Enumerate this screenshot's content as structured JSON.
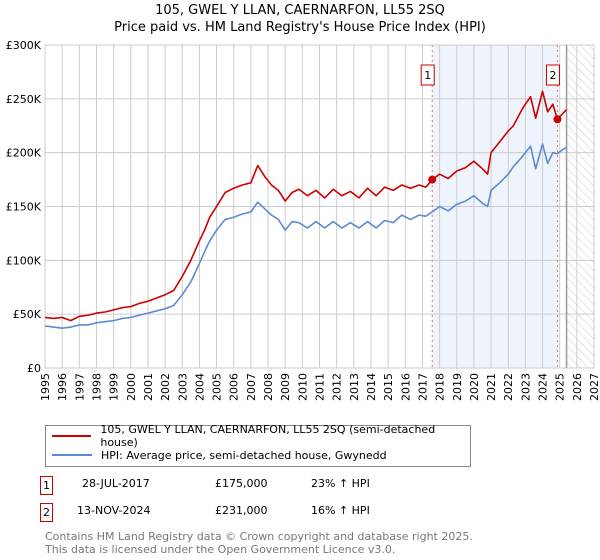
{
  "chart_data": {
    "type": "line",
    "title": "105, GWEL Y LLAN, CAERNARFON, LL55 2SQ",
    "subtitle": "Price paid vs. HM Land Registry's House Price Index (HPI)",
    "xlim": [
      1995,
      2027
    ],
    "ylim": [
      0,
      300000
    ],
    "x_ticks": [
      "1995",
      "1996",
      "1997",
      "1998",
      "1999",
      "2000",
      "2001",
      "2002",
      "2003",
      "2004",
      "2005",
      "2006",
      "2007",
      "2008",
      "2009",
      "2010",
      "2011",
      "2012",
      "2013",
      "2014",
      "2015",
      "2016",
      "2017",
      "2018",
      "2019",
      "2020",
      "2021",
      "2022",
      "2023",
      "2024",
      "2025",
      "2026",
      "2027"
    ],
    "y_ticks": [
      {
        "v": 0,
        "label": "£0"
      },
      {
        "v": 50000,
        "label": "£50K"
      },
      {
        "v": 100000,
        "label": "£100K"
      },
      {
        "v": 150000,
        "label": "£150K"
      },
      {
        "v": 200000,
        "label": "£200K"
      },
      {
        "v": 250000,
        "label": "£250K"
      },
      {
        "v": 300000,
        "label": "£300K"
      }
    ],
    "grid": true,
    "series": [
      {
        "name": "105, GWEL Y LLAN, CAERNARFON, LL55 2SQ (semi-detached house)",
        "color": "#cc0000",
        "x": [
          1995,
          1995.5,
          1996,
          1996.5,
          1997,
          1997.5,
          1998,
          1998.5,
          1999,
          1999.5,
          2000,
          2000.5,
          2001,
          2001.5,
          2002,
          2002.5,
          2003,
          2003.5,
          2004,
          2004.3,
          2004.6,
          2005,
          2005.5,
          2006,
          2006.5,
          2007,
          2007.4,
          2007.8,
          2008.2,
          2008.6,
          2009,
          2009.4,
          2009.8,
          2010.3,
          2010.8,
          2011.3,
          2011.8,
          2012.3,
          2012.8,
          2013.3,
          2013.8,
          2014.3,
          2014.8,
          2015.3,
          2015.8,
          2016.3,
          2016.8,
          2017.2,
          2017.57,
          2018,
          2018.5,
          2019,
          2019.5,
          2020,
          2020.5,
          2020.8,
          2021,
          2021.5,
          2022,
          2022.3,
          2022.8,
          2023,
          2023.3,
          2023.6,
          2024,
          2024.3,
          2024.6,
          2024.87,
          2025.1,
          2025.4
        ],
        "y": [
          47000,
          46000,
          47000,
          44000,
          48000,
          49000,
          51000,
          52000,
          54000,
          56000,
          57000,
          60000,
          62000,
          65000,
          68000,
          72000,
          85000,
          100000,
          118000,
          128000,
          140000,
          150000,
          163000,
          167000,
          170000,
          172000,
          188000,
          178000,
          170000,
          165000,
          155000,
          163000,
          166000,
          160000,
          165000,
          158000,
          166000,
          160000,
          164000,
          158000,
          167000,
          160000,
          168000,
          165000,
          170000,
          167000,
          170000,
          168000,
          175000,
          180000,
          176000,
          183000,
          186000,
          192000,
          185000,
          180000,
          200000,
          210000,
          220000,
          225000,
          240000,
          245000,
          252000,
          232000,
          257000,
          238000,
          245000,
          231000,
          235000,
          240000
        ]
      },
      {
        "name": "HPI: Average price, semi-detached house, Gwynedd",
        "color": "#5b8bd0",
        "x": [
          1995,
          1995.5,
          1996,
          1996.5,
          1997,
          1997.5,
          1998,
          1998.5,
          1999,
          1999.5,
          2000,
          2000.5,
          2001,
          2001.5,
          2002,
          2002.5,
          2003,
          2003.5,
          2004,
          2004.3,
          2004.6,
          2005,
          2005.5,
          2006,
          2006.5,
          2007,
          2007.4,
          2007.8,
          2008.2,
          2008.6,
          2009,
          2009.4,
          2009.8,
          2010.3,
          2010.8,
          2011.3,
          2011.8,
          2012.3,
          2012.8,
          2013.3,
          2013.8,
          2014.3,
          2014.8,
          2015.3,
          2015.8,
          2016.3,
          2016.8,
          2017.2,
          2017.57,
          2018,
          2018.5,
          2019,
          2019.5,
          2020,
          2020.5,
          2020.8,
          2021,
          2021.5,
          2022,
          2022.3,
          2022.8,
          2023,
          2023.3,
          2023.6,
          2024,
          2024.3,
          2024.6,
          2024.87,
          2025.1,
          2025.4
        ],
        "y": [
          39000,
          38000,
          37000,
          38000,
          40000,
          40000,
          42000,
          43000,
          44000,
          46000,
          47000,
          49000,
          51000,
          53000,
          55000,
          58000,
          68000,
          80000,
          97000,
          108000,
          118000,
          128000,
          138000,
          140000,
          143000,
          145000,
          154000,
          148000,
          142000,
          138000,
          128000,
          136000,
          135000,
          130000,
          136000,
          130000,
          136000,
          130000,
          135000,
          130000,
          136000,
          130000,
          137000,
          135000,
          142000,
          138000,
          142000,
          141000,
          145000,
          150000,
          146000,
          152000,
          155000,
          160000,
          153000,
          150000,
          165000,
          172000,
          180000,
          187000,
          196000,
          200000,
          206000,
          185000,
          208000,
          190000,
          200000,
          199000,
          202000,
          205000
        ]
      }
    ],
    "sales": [
      {
        "id": "1",
        "x": 2017.57,
        "y": 175000
      },
      {
        "id": "2",
        "x": 2024.87,
        "y": 231000
      }
    ],
    "forecast_start": 2025.4,
    "legend": "below"
  },
  "legend": {
    "red_label": "105, GWEL Y LLAN, CAERNARFON, LL55 2SQ (semi-detached house)",
    "blue_label": "HPI: Average price, semi-detached house, Gwynedd"
  },
  "transactions": [
    {
      "id": "1",
      "date": "28-JUL-2017",
      "price": "£175,000",
      "hpi": "23% ↑ HPI"
    },
    {
      "id": "2",
      "date": "13-NOV-2024",
      "price": "£231,000",
      "hpi": "16% ↑ HPI"
    }
  ],
  "footer": {
    "line1": "Contains HM Land Registry data © Crown copyright and database right 2025.",
    "line2": "This data is licensed under the Open Government Licence v3.0."
  }
}
